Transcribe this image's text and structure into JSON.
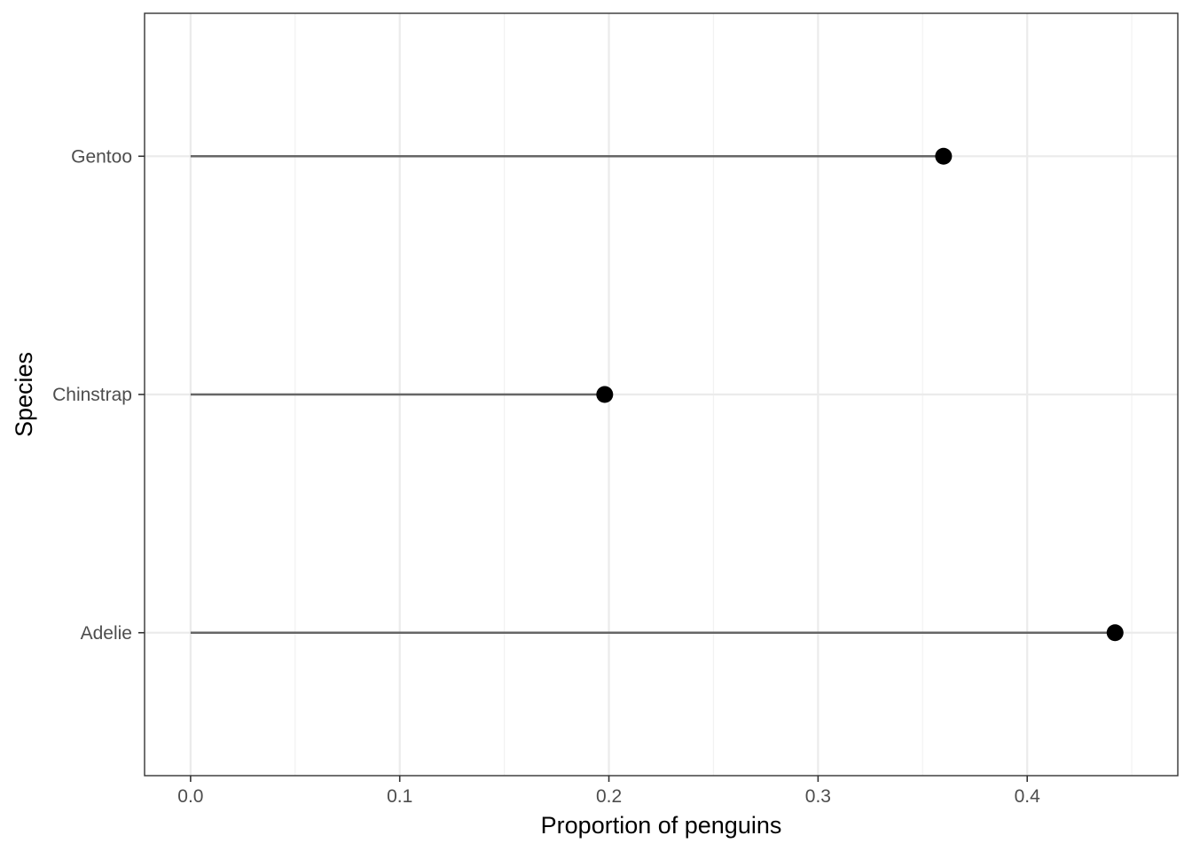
{
  "chart_data": {
    "type": "lollipop",
    "xlabel": "Proportion of penguins",
    "ylabel": "Species",
    "xlim": [
      -0.022,
      0.472
    ],
    "x_ticks": [
      {
        "value": 0.0,
        "label": "0.0"
      },
      {
        "value": 0.1,
        "label": "0.1"
      },
      {
        "value": 0.2,
        "label": "0.2"
      },
      {
        "value": 0.3,
        "label": "0.3"
      },
      {
        "value": 0.4,
        "label": "0.4"
      }
    ],
    "x_minor_ticks": [
      0.05,
      0.15,
      0.25,
      0.35,
      0.45
    ],
    "categories": [
      "Adelie",
      "Chinstrap",
      "Gentoo"
    ],
    "values": [
      0.442,
      0.198,
      0.36
    ],
    "grid": true,
    "theme": "bw",
    "colors": {
      "segment": "#666666",
      "point": "#000000",
      "grid_major": "#ebebeb",
      "grid_minor": "#f2f2f2",
      "panel_border": "#333333",
      "tick_label": "#4d4d4d"
    }
  }
}
